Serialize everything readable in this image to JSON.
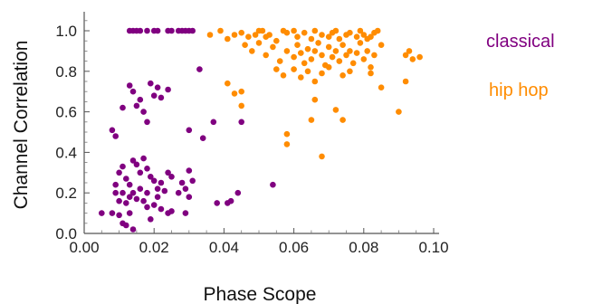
{
  "chart_data": {
    "type": "scatter",
    "xlabel": "Phase Scope",
    "ylabel": "Channel Correlation",
    "xlim": [
      0.0,
      0.1
    ],
    "ylim": [
      0.0,
      1.0
    ],
    "x_ticks": [
      "0.00",
      "0.02",
      "0.04",
      "0.06",
      "0.08",
      "0.10"
    ],
    "y_ticks": [
      "0.0",
      "0.2",
      "0.4",
      "0.6",
      "0.8",
      "1.0"
    ],
    "grid": false,
    "legend_position": "right",
    "series": [
      {
        "name": "classical",
        "color": "#800080",
        "points": [
          [
            0.013,
            1.0
          ],
          [
            0.014,
            1.0
          ],
          [
            0.015,
            1.0
          ],
          [
            0.016,
            1.0
          ],
          [
            0.018,
            1.0
          ],
          [
            0.02,
            1.0
          ],
          [
            0.021,
            1.0
          ],
          [
            0.024,
            1.0
          ],
          [
            0.025,
            1.0
          ],
          [
            0.027,
            1.0
          ],
          [
            0.028,
            1.0
          ],
          [
            0.029,
            1.0
          ],
          [
            0.03,
            1.0
          ],
          [
            0.031,
            1.0
          ],
          [
            0.033,
            0.81
          ],
          [
            0.013,
            0.73
          ],
          [
            0.014,
            0.7
          ],
          [
            0.016,
            0.66
          ],
          [
            0.015,
            0.63
          ],
          [
            0.017,
            0.6
          ],
          [
            0.018,
            0.55
          ],
          [
            0.02,
            0.68
          ],
          [
            0.021,
            0.72
          ],
          [
            0.022,
            0.67
          ],
          [
            0.024,
            0.71
          ],
          [
            0.019,
            0.74
          ],
          [
            0.011,
            0.62
          ],
          [
            0.008,
            0.51
          ],
          [
            0.009,
            0.48
          ],
          [
            0.03,
            0.51
          ],
          [
            0.034,
            0.47
          ],
          [
            0.045,
            0.55
          ],
          [
            0.037,
            0.55
          ],
          [
            0.01,
            0.3
          ],
          [
            0.011,
            0.33
          ],
          [
            0.012,
            0.27
          ],
          [
            0.013,
            0.24
          ],
          [
            0.014,
            0.36
          ],
          [
            0.015,
            0.34
          ],
          [
            0.016,
            0.3
          ],
          [
            0.017,
            0.37
          ],
          [
            0.018,
            0.32
          ],
          [
            0.019,
            0.28
          ],
          [
            0.02,
            0.26
          ],
          [
            0.021,
            0.22
          ],
          [
            0.022,
            0.25
          ],
          [
            0.023,
            0.21
          ],
          [
            0.024,
            0.3
          ],
          [
            0.025,
            0.28
          ],
          [
            0.028,
            0.25
          ],
          [
            0.029,
            0.22
          ],
          [
            0.03,
            0.31
          ],
          [
            0.031,
            0.26
          ],
          [
            0.027,
            0.2
          ],
          [
            0.009,
            0.24
          ],
          [
            0.009,
            0.2
          ],
          [
            0.01,
            0.16
          ],
          [
            0.011,
            0.2
          ],
          [
            0.012,
            0.15
          ],
          [
            0.013,
            0.18
          ],
          [
            0.014,
            0.2
          ],
          [
            0.015,
            0.17
          ],
          [
            0.016,
            0.22
          ],
          [
            0.017,
            0.16
          ],
          [
            0.018,
            0.2
          ],
          [
            0.02,
            0.14
          ],
          [
            0.021,
            0.18
          ],
          [
            0.022,
            0.12
          ],
          [
            0.024,
            0.1
          ],
          [
            0.025,
            0.11
          ],
          [
            0.029,
            0.1
          ],
          [
            0.03,
            0.18
          ],
          [
            0.038,
            0.15
          ],
          [
            0.041,
            0.15
          ],
          [
            0.042,
            0.16
          ],
          [
            0.044,
            0.2
          ],
          [
            0.054,
            0.24
          ],
          [
            0.005,
            0.1
          ],
          [
            0.008,
            0.1
          ],
          [
            0.01,
            0.09
          ],
          [
            0.011,
            0.05
          ],
          [
            0.012,
            0.04
          ],
          [
            0.014,
            0.02
          ],
          [
            0.013,
            0.1
          ],
          [
            0.018,
            0.13
          ],
          [
            0.019,
            0.07
          ]
        ]
      },
      {
        "name": "hip hop",
        "color": "#FF8C00",
        "points": [
          [
            0.036,
            0.98
          ],
          [
            0.039,
            1.0
          ],
          [
            0.041,
            0.96
          ],
          [
            0.043,
            0.98
          ],
          [
            0.045,
            0.99
          ],
          [
            0.047,
            0.97
          ],
          [
            0.049,
            0.98
          ],
          [
            0.05,
            1.0
          ],
          [
            0.051,
            1.0
          ],
          [
            0.052,
            0.97
          ],
          [
            0.053,
            0.98
          ],
          [
            0.055,
            0.95
          ],
          [
            0.057,
            1.0
          ],
          [
            0.058,
            0.99
          ],
          [
            0.06,
            1.0
          ],
          [
            0.061,
            0.97
          ],
          [
            0.063,
            0.99
          ],
          [
            0.065,
            0.96
          ],
          [
            0.066,
            1.0
          ],
          [
            0.068,
            0.98
          ],
          [
            0.07,
            0.97
          ],
          [
            0.071,
            0.99
          ],
          [
            0.072,
            1.0
          ],
          [
            0.073,
            0.96
          ],
          [
            0.075,
            0.98
          ],
          [
            0.076,
            0.99
          ],
          [
            0.078,
            0.97
          ],
          [
            0.079,
            1.0
          ],
          [
            0.08,
            0.98
          ],
          [
            0.081,
            0.96
          ],
          [
            0.082,
            0.97
          ],
          [
            0.083,
            0.99
          ],
          [
            0.084,
            1.0
          ],
          [
            0.046,
            0.93
          ],
          [
            0.048,
            0.9
          ],
          [
            0.05,
            0.94
          ],
          [
            0.052,
            0.88
          ],
          [
            0.054,
            0.92
          ],
          [
            0.056,
            0.85
          ],
          [
            0.058,
            0.9
          ],
          [
            0.06,
            0.87
          ],
          [
            0.061,
            0.93
          ],
          [
            0.062,
            0.89
          ],
          [
            0.063,
            0.84
          ],
          [
            0.064,
            0.91
          ],
          [
            0.065,
            0.86
          ],
          [
            0.066,
            0.9
          ],
          [
            0.067,
            0.94
          ],
          [
            0.068,
            0.88
          ],
          [
            0.069,
            0.83
          ],
          [
            0.07,
            0.92
          ],
          [
            0.071,
            0.87
          ],
          [
            0.072,
            0.9
          ],
          [
            0.073,
            0.85
          ],
          [
            0.074,
            0.93
          ],
          [
            0.075,
            0.88
          ],
          [
            0.076,
            0.9
          ],
          [
            0.077,
            0.84
          ],
          [
            0.078,
            0.89
          ],
          [
            0.079,
            0.94
          ],
          [
            0.08,
            0.86
          ],
          [
            0.081,
            0.9
          ],
          [
            0.082,
            0.82
          ],
          [
            0.083,
            0.88
          ],
          [
            0.085,
            0.93
          ],
          [
            0.092,
            0.88
          ],
          [
            0.093,
            0.9
          ],
          [
            0.094,
            0.86
          ],
          [
            0.096,
            0.87
          ],
          [
            0.055,
            0.81
          ],
          [
            0.057,
            0.78
          ],
          [
            0.06,
            0.81
          ],
          [
            0.062,
            0.77
          ],
          [
            0.064,
            0.8
          ],
          [
            0.066,
            0.75
          ],
          [
            0.068,
            0.79
          ],
          [
            0.07,
            0.82
          ],
          [
            0.074,
            0.78
          ],
          [
            0.076,
            0.8
          ],
          [
            0.082,
            0.79
          ],
          [
            0.085,
            0.72
          ],
          [
            0.092,
            0.75
          ],
          [
            0.041,
            0.74
          ],
          [
            0.043,
            0.69
          ],
          [
            0.045,
            0.7
          ],
          [
            0.045,
            0.63
          ],
          [
            0.066,
            0.66
          ],
          [
            0.072,
            0.61
          ],
          [
            0.074,
            0.56
          ],
          [
            0.065,
            0.56
          ],
          [
            0.058,
            0.49
          ],
          [
            0.058,
            0.44
          ],
          [
            0.068,
            0.38
          ],
          [
            0.09,
            0.6
          ]
        ]
      }
    ]
  }
}
